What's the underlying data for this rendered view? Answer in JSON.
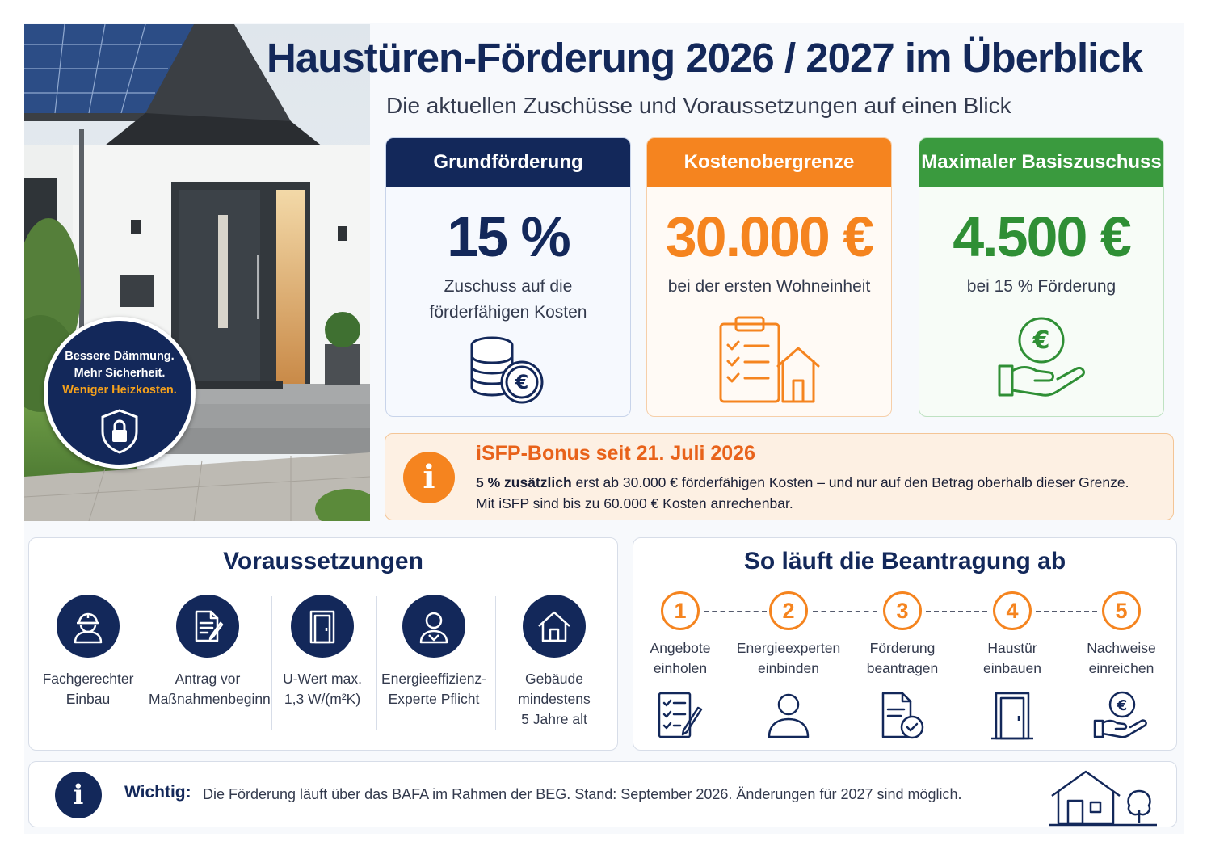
{
  "header": {
    "title": "Haustüren-Förderung 2026 / 2027 im Überblick",
    "subtitle": "Die aktuellen Zuschüsse und Voraussetzungen auf einen Blick"
  },
  "badge": {
    "line1": "Bessere Dämmung.",
    "line2": "Mehr Sicherheit.",
    "line3": "Weniger Heizkosten.",
    "icon": "shield-lock-icon"
  },
  "cards": [
    {
      "head": "Grundförderung",
      "value": "15 %",
      "desc1": "Zuschuss auf die",
      "desc2": "förderfähigen Kosten",
      "icon": "coins-euro-icon",
      "color": "#13285a"
    },
    {
      "head": "Kostenobergrenze",
      "value": "30.000 €",
      "desc1": "bei der ersten Wohneinheit",
      "icon": "clipboard-house-icon",
      "color": "#f5841f"
    },
    {
      "head": "Maximaler Basiszuschuss",
      "value": "4.500 €",
      "desc1": "bei 15 % Förderung",
      "icon": "hand-euro-icon",
      "color": "#3a9a3e"
    }
  ],
  "bonus": {
    "icon_text": "i",
    "title": "iSFP-Bonus seit 21. Juli 2026",
    "line1_bold": "5 % zusätzlich",
    "line1_rest": " erst ab 30.000 € förderfähigen Kosten – und nur auf den Betrag oberhalb dieser Grenze.",
    "line2": "Mit iSFP sind bis zu 60.000 € Kosten anrechenbar."
  },
  "requirements": {
    "title": "Voraussetzungen",
    "items": [
      {
        "label": "Fachgerechter\nEinbau",
        "icon": "worker-icon"
      },
      {
        "label": "Antrag vor\nMaßnahmenbeginn",
        "icon": "document-pen-icon"
      },
      {
        "label": "U-Wert max.\n1,3 W/(m²K)",
        "icon": "door-icon"
      },
      {
        "label": "Energieeffizienz-\nExperte Pflicht",
        "icon": "person-icon"
      },
      {
        "label": "Gebäude\nmindestens\n5 Jahre alt",
        "icon": "house-icon"
      }
    ]
  },
  "process": {
    "title": "So läuft die Beantragung ab",
    "steps": [
      {
        "num": "1",
        "label": "Angebote\neinholen",
        "icon": "checklist-pen-icon"
      },
      {
        "num": "2",
        "label": "Energieexperten\neinbinden",
        "icon": "person-outline-icon"
      },
      {
        "num": "3",
        "label": "Förderung\nbeantragen",
        "icon": "document-check-icon"
      },
      {
        "num": "4",
        "label": "Haustür\neinbauen",
        "icon": "door-outline-icon"
      },
      {
        "num": "5",
        "label": "Nachweise\neinreichen",
        "icon": "hand-euro-outline-icon"
      }
    ]
  },
  "footer": {
    "icon_text": "i",
    "label": "Wichtig:",
    "text": "Die Förderung läuft über das BAFA im Rahmen der BEG. Stand: September 2026. Änderungen für 2027 sind möglich.",
    "icon": "house-tree-icon"
  }
}
